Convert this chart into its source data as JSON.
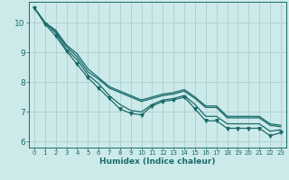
{
  "background_color": "#cdeaea",
  "grid_color": "#aacfcf",
  "line_color": "#1a6b6b",
  "xlabel": "Humidex (Indice chaleur)",
  "xlim": [
    -0.5,
    23.5
  ],
  "ylim": [
    5.8,
    10.7
  ],
  "xticks": [
    0,
    1,
    2,
    3,
    4,
    5,
    6,
    7,
    8,
    9,
    10,
    11,
    12,
    13,
    14,
    15,
    16,
    17,
    18,
    19,
    20,
    21,
    22,
    23
  ],
  "yticks": [
    6,
    7,
    8,
    9,
    10
  ],
  "series": [
    [
      10.5,
      10.0,
      9.65,
      9.1,
      8.75,
      8.25,
      7.95,
      7.55,
      7.25,
      7.05,
      7.0,
      7.25,
      7.4,
      7.45,
      7.55,
      7.25,
      6.85,
      6.85,
      6.6,
      6.6,
      6.6,
      6.6,
      6.35,
      6.4
    ],
    [
      10.5,
      9.95,
      9.55,
      9.05,
      8.6,
      8.15,
      7.8,
      7.45,
      7.1,
      6.95,
      6.9,
      7.2,
      7.35,
      7.4,
      7.5,
      7.1,
      6.7,
      6.7,
      6.45,
      6.45,
      6.45,
      6.45,
      6.2,
      6.3
    ],
    [
      10.5,
      10.0,
      9.7,
      9.2,
      8.85,
      8.35,
      8.1,
      7.8,
      7.65,
      7.5,
      7.35,
      7.45,
      7.55,
      7.6,
      7.7,
      7.45,
      7.15,
      7.15,
      6.8,
      6.8,
      6.8,
      6.8,
      6.55,
      6.5
    ],
    [
      10.5,
      10.0,
      9.75,
      9.25,
      8.95,
      8.45,
      8.15,
      7.85,
      7.7,
      7.55,
      7.4,
      7.5,
      7.6,
      7.65,
      7.75,
      7.5,
      7.2,
      7.2,
      6.85,
      6.85,
      6.85,
      6.85,
      6.6,
      6.55
    ]
  ],
  "marker_series": [
    1
  ],
  "marker": "v",
  "marker_size": 2.5,
  "linewidth": 0.9,
  "xlabel_fontsize": 6.5,
  "tick_fontsize_x": 5.0,
  "tick_fontsize_y": 6.5
}
